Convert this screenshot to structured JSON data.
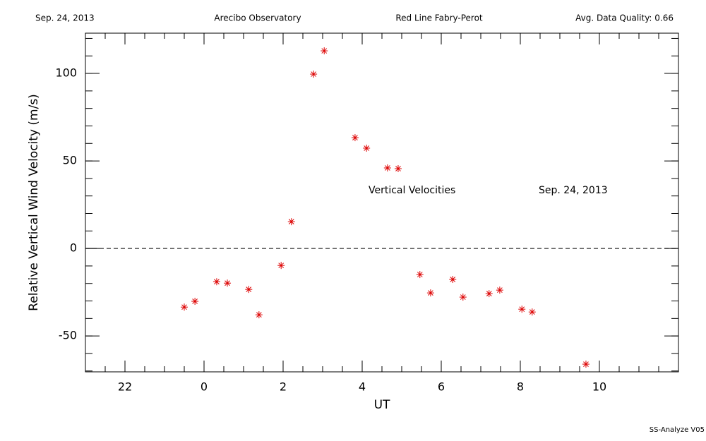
{
  "chart_data": {
    "type": "scatter",
    "header": [
      "Sep. 24, 2013",
      "Arecibo Observatory",
      "Red Line Fabry-Perot",
      "Avg. Data Quality: 0.66"
    ],
    "xlabel": "UT",
    "ylabel": "Relative Vertical Wind Velocity (m/s)",
    "annotations": [
      "Vertical Velocities",
      "Sep. 24, 2013"
    ],
    "footer": "SS-Analyze V05",
    "xlim": [
      -3,
      12
    ],
    "ylim": [
      -70.5,
      123
    ],
    "xticks": [
      {
        "value": -2,
        "label": "22"
      },
      0,
      2,
      4,
      6,
      8,
      10
    ],
    "yticks": [
      -50,
      0,
      50,
      100
    ],
    "xminor": 0.5,
    "yminor": 10,
    "hline": 0,
    "series": [
      {
        "name": "Vertical Velocities",
        "color": "#dd0000",
        "x": [
          -0.5,
          -0.23,
          0.32,
          0.59,
          1.13,
          1.39,
          1.95,
          2.21,
          2.77,
          3.04,
          3.82,
          4.11,
          4.64,
          4.91,
          5.46,
          5.73,
          6.29,
          6.55,
          7.21,
          7.48,
          8.04,
          8.3,
          9.66
        ],
        "values": [
          -33.5,
          -30.2,
          -19,
          -19.8,
          -23.4,
          -37.9,
          -9.7,
          15.3,
          99.6,
          112.9,
          63.3,
          57.3,
          46,
          45.6,
          -14.9,
          -25.4,
          -17.7,
          -27.8,
          -25.8,
          -23.8,
          -34.7,
          -36.3,
          -66.1
        ]
      }
    ]
  }
}
